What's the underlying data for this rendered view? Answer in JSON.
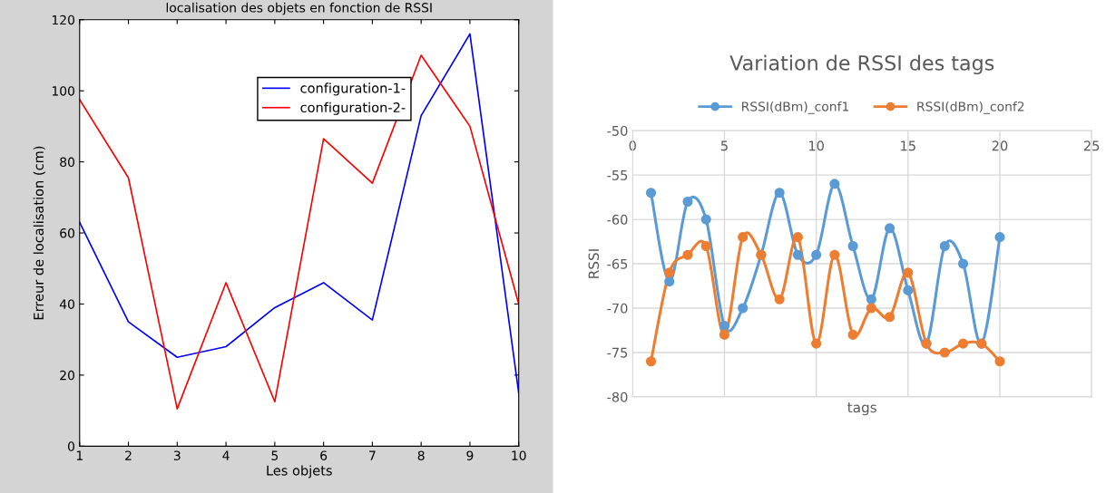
{
  "chart_data": [
    {
      "type": "line",
      "title": "localisation des objets en fonction de RSSI",
      "xlabel": "Les objets",
      "ylabel": "Erreur de localisation (cm)",
      "x": [
        1,
        2,
        3,
        4,
        5,
        6,
        7,
        8,
        9,
        10
      ],
      "xlim": [
        1,
        10
      ],
      "xticks": [
        1,
        2,
        3,
        4,
        5,
        6,
        7,
        8,
        9,
        10
      ],
      "ylim": [
        0,
        120
      ],
      "yticks": [
        0,
        20,
        40,
        60,
        80,
        100,
        120
      ],
      "grid": false,
      "legend": "top",
      "marker": "none",
      "line_style": "solid",
      "series": [
        {
          "name": "configuration-1-",
          "color": "#0000ff",
          "values": [
            63,
            35,
            25,
            28,
            39,
            46,
            35.5,
            93,
            116,
            15
          ]
        },
        {
          "name": "configuration-2-",
          "color": "#ff0000",
          "values": [
            97.5,
            75.5,
            10.5,
            46,
            12.5,
            86.5,
            74,
            110,
            90,
            40
          ]
        }
      ]
    },
    {
      "type": "line",
      "title": "Variation de RSSI des tags",
      "xlabel": "tags",
      "ylabel": "RSSI",
      "x": [
        1,
        2,
        3,
        4,
        5,
        6,
        7,
        8,
        9,
        10,
        11,
        12,
        13,
        14,
        15,
        16,
        17,
        18,
        19,
        20
      ],
      "xlim": [
        0,
        25
      ],
      "xticks": [
        0,
        5,
        10,
        15,
        20,
        25
      ],
      "ylim": [
        -80,
        -50
      ],
      "yticks": [
        -80,
        -75,
        -70,
        -65,
        -60,
        -55,
        -50
      ],
      "grid": true,
      "legend": "top",
      "marker": "circle",
      "line_style": "solid",
      "series": [
        {
          "name": "RSSI(dBm)_conf1",
          "color": "#5b9bd5",
          "values": [
            -57,
            -67,
            -58,
            -60,
            -72,
            -70,
            -64,
            -57,
            -64,
            -64,
            -56,
            -63,
            -69,
            -61,
            -68,
            -74,
            -63,
            -65,
            -74,
            -62
          ]
        },
        {
          "name": "RSSI(dBm)_conf2",
          "color": "#ed7d31",
          "values": [
            -76,
            -66,
            -64,
            -63,
            -73,
            -62,
            -64,
            -69,
            -62,
            -74,
            -64,
            -73,
            -70,
            -71,
            -66,
            -74,
            -75,
            -74,
            -74,
            -76
          ]
        }
      ]
    }
  ]
}
